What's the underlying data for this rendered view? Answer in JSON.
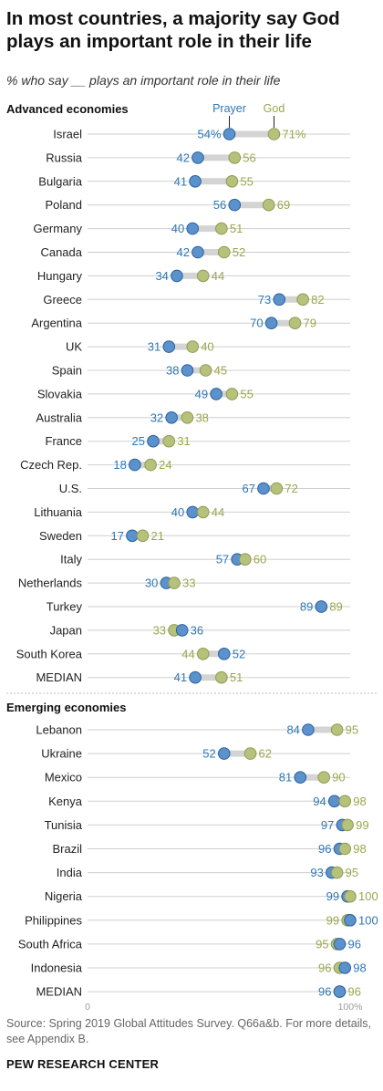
{
  "title": "In most countries, a majority say God plays an important role in their life",
  "subtitle": "% who say __ plays an important role in their life",
  "source": "Source: Spring 2019 Global Attitudes Survey. Q66a&b. For more details, see Appendix B.",
  "brand": "PEW RESEARCH CENTER",
  "colors": {
    "prayer": "#5b92cc",
    "prayer_stroke": "#2a5f9e",
    "god": "#b6c27c",
    "god_stroke": "#8f9a4f",
    "prayer_text": "#2f77b5",
    "god_text": "#9aa64a",
    "grid": "#cfcfcf",
    "connector": "#d4d4d4"
  },
  "chart_data": {
    "type": "dot",
    "xlim": [
      0,
      100
    ],
    "axis_labels": [
      "0",
      "100%"
    ],
    "series": [
      {
        "name": "Prayer"
      },
      {
        "name": "God"
      }
    ],
    "groups": [
      {
        "name": "Advanced economies",
        "rows": [
          {
            "country": "Israel",
            "prayer": 54,
            "god": 71,
            "prayer_label": "54%",
            "god_label": "71%"
          },
          {
            "country": "Russia",
            "prayer": 42,
            "god": 56,
            "prayer_label": "42",
            "god_label": "56"
          },
          {
            "country": "Bulgaria",
            "prayer": 41,
            "god": 55,
            "prayer_label": "41",
            "god_label": "55"
          },
          {
            "country": "Poland",
            "prayer": 56,
            "god": 69,
            "prayer_label": "56",
            "god_label": "69"
          },
          {
            "country": "Germany",
            "prayer": 40,
            "god": 51,
            "prayer_label": "40",
            "god_label": "51"
          },
          {
            "country": "Canada",
            "prayer": 42,
            "god": 52,
            "prayer_label": "42",
            "god_label": "52"
          },
          {
            "country": "Hungary",
            "prayer": 34,
            "god": 44,
            "prayer_label": "34",
            "god_label": "44"
          },
          {
            "country": "Greece",
            "prayer": 73,
            "god": 82,
            "prayer_label": "73",
            "god_label": "82"
          },
          {
            "country": "Argentina",
            "prayer": 70,
            "god": 79,
            "prayer_label": "70",
            "god_label": "79"
          },
          {
            "country": "UK",
            "prayer": 31,
            "god": 40,
            "prayer_label": "31",
            "god_label": "40"
          },
          {
            "country": "Spain",
            "prayer": 38,
            "god": 45,
            "prayer_label": "38",
            "god_label": "45"
          },
          {
            "country": "Slovakia",
            "prayer": 49,
            "god": 55,
            "prayer_label": "49",
            "god_label": "55"
          },
          {
            "country": "Australia",
            "prayer": 32,
            "god": 38,
            "prayer_label": "32",
            "god_label": "38"
          },
          {
            "country": "France",
            "prayer": 25,
            "god": 31,
            "prayer_label": "25",
            "god_label": "31"
          },
          {
            "country": "Czech Rep.",
            "prayer": 18,
            "god": 24,
            "prayer_label": "18",
            "god_label": "24"
          },
          {
            "country": "U.S.",
            "prayer": 67,
            "god": 72,
            "prayer_label": "67",
            "god_label": "72"
          },
          {
            "country": "Lithuania",
            "prayer": 40,
            "god": 44,
            "prayer_label": "40",
            "god_label": "44"
          },
          {
            "country": "Sweden",
            "prayer": 17,
            "god": 21,
            "prayer_label": "17",
            "god_label": "21"
          },
          {
            "country": "Italy",
            "prayer": 57,
            "god": 60,
            "prayer_label": "57",
            "god_label": "60"
          },
          {
            "country": "Netherlands",
            "prayer": 30,
            "god": 33,
            "prayer_label": "30",
            "god_label": "33"
          },
          {
            "country": "Turkey",
            "prayer": 89,
            "god": 89,
            "prayer_label": "89",
            "god_label": "89"
          },
          {
            "country": "Japan",
            "prayer": 36,
            "god": 33,
            "prayer_label": "36",
            "god_label": "33"
          },
          {
            "country": "South Korea",
            "prayer": 52,
            "god": 44,
            "prayer_label": "52",
            "god_label": "44"
          },
          {
            "country": "MEDIAN",
            "prayer": 41,
            "god": 51,
            "prayer_label": "41",
            "god_label": "51"
          }
        ]
      },
      {
        "name": "Emerging economies",
        "rows": [
          {
            "country": "Lebanon",
            "prayer": 84,
            "god": 95,
            "prayer_label": "84",
            "god_label": "95"
          },
          {
            "country": "Ukraine",
            "prayer": 52,
            "god": 62,
            "prayer_label": "52",
            "god_label": "62"
          },
          {
            "country": "Mexico",
            "prayer": 81,
            "god": 90,
            "prayer_label": "81",
            "god_label": "90"
          },
          {
            "country": "Kenya",
            "prayer": 94,
            "god": 98,
            "prayer_label": "94",
            "god_label": "98"
          },
          {
            "country": "Tunisia",
            "prayer": 97,
            "god": 99,
            "prayer_label": "97",
            "god_label": "99"
          },
          {
            "country": "Brazil",
            "prayer": 96,
            "god": 98,
            "prayer_label": "96",
            "god_label": "98"
          },
          {
            "country": "India",
            "prayer": 93,
            "god": 95,
            "prayer_label": "93",
            "god_label": "95"
          },
          {
            "country": "Nigeria",
            "prayer": 99,
            "god": 100,
            "prayer_label": "99",
            "god_label": "100"
          },
          {
            "country": "Philippines",
            "prayer": 100,
            "god": 99,
            "prayer_label": "100",
            "god_label": "99"
          },
          {
            "country": "South Africa",
            "prayer": 96,
            "god": 95,
            "prayer_label": "96",
            "god_label": "95"
          },
          {
            "country": "Indonesia",
            "prayer": 98,
            "god": 96,
            "prayer_label": "98",
            "god_label": "96"
          },
          {
            "country": "MEDIAN",
            "prayer": 96,
            "god": 96,
            "prayer_label": "96",
            "god_label": "96"
          }
        ]
      }
    ]
  }
}
